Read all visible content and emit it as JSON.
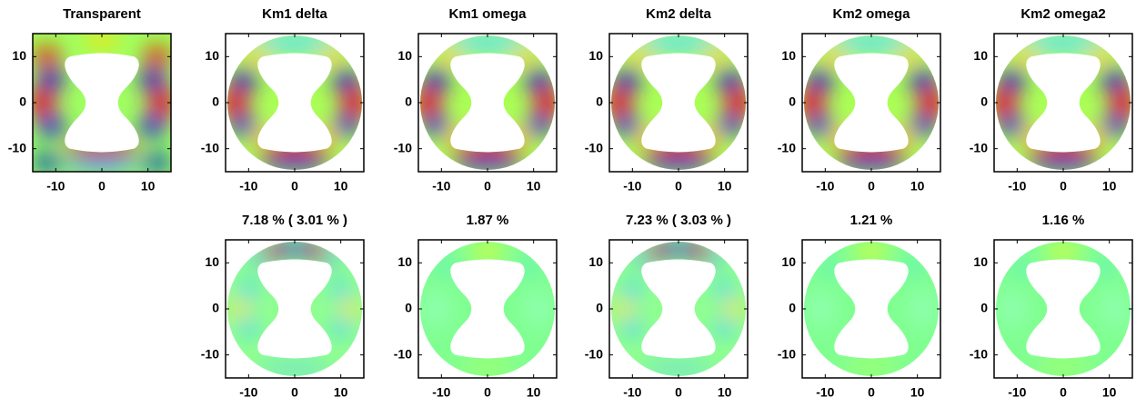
{
  "chart_data": [
    {
      "type": "heatmap",
      "title": "Transparent",
      "xlim": [
        -15,
        15
      ],
      "ylim": [
        -15,
        15
      ],
      "xticks": [
        -10,
        0,
        10
      ],
      "yticks": [
        -10,
        0,
        10
      ]
    },
    {
      "type": "heatmap",
      "title": "Km1 delta",
      "xlim": [
        -15,
        15
      ],
      "ylim": [
        -15,
        15
      ],
      "xticks": [
        -10,
        0,
        10
      ],
      "yticks": [
        -10,
        0,
        10
      ]
    },
    {
      "type": "heatmap",
      "title": "Km1 omega",
      "xlim": [
        -15,
        15
      ],
      "ylim": [
        -15,
        15
      ],
      "xticks": [
        -10,
        0,
        10
      ],
      "yticks": [
        -10,
        0,
        10
      ]
    },
    {
      "type": "heatmap",
      "title": "Km2 delta",
      "xlim": [
        -15,
        15
      ],
      "ylim": [
        -15,
        15
      ],
      "xticks": [
        -10,
        0,
        10
      ],
      "yticks": [
        -10,
        0,
        10
      ]
    },
    {
      "type": "heatmap",
      "title": "Km2 omega",
      "xlim": [
        -15,
        15
      ],
      "ylim": [
        -15,
        15
      ],
      "xticks": [
        -10,
        0,
        10
      ],
      "yticks": [
        -10,
        0,
        10
      ]
    },
    {
      "type": "heatmap",
      "title": "Km2 omega2",
      "xlim": [
        -15,
        15
      ],
      "ylim": [
        -15,
        15
      ],
      "xticks": [
        -10,
        0,
        10
      ],
      "yticks": [
        -10,
        0,
        10
      ]
    },
    {
      "type": "heatmap",
      "title": "7.18 % ( 3.01 % )",
      "xlim": [
        -15,
        15
      ],
      "ylim": [
        -15,
        15
      ],
      "xticks": [
        -10,
        0,
        10
      ],
      "yticks": [
        -10,
        0,
        10
      ]
    },
    {
      "type": "heatmap",
      "title": "1.87 %",
      "xlim": [
        -15,
        15
      ],
      "ylim": [
        -15,
        15
      ],
      "xticks": [
        -10,
        0,
        10
      ],
      "yticks": [
        -10,
        0,
        10
      ]
    },
    {
      "type": "heatmap",
      "title": "7.23 % ( 3.03 % )",
      "xlim": [
        -15,
        15
      ],
      "ylim": [
        -15,
        15
      ],
      "xticks": [
        -10,
        0,
        10
      ],
      "yticks": [
        -10,
        0,
        10
      ]
    },
    {
      "type": "heatmap",
      "title": "1.21 %",
      "xlim": [
        -15,
        15
      ],
      "ylim": [
        -15,
        15
      ],
      "xticks": [
        -10,
        0,
        10
      ],
      "yticks": [
        -10,
        0,
        10
      ]
    },
    {
      "type": "heatmap",
      "title": "1.16 %",
      "xlim": [
        -15,
        15
      ],
      "ylim": [
        -15,
        15
      ],
      "xticks": [
        -10,
        0,
        10
      ],
      "yticks": [
        -10,
        0,
        10
      ]
    }
  ]
}
